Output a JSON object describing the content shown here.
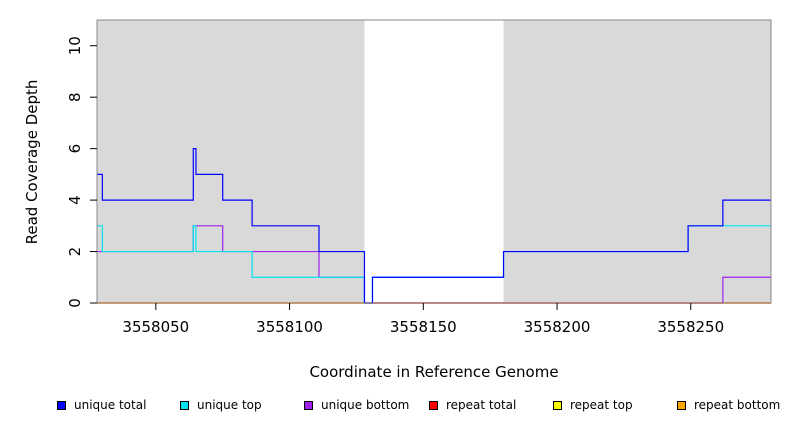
{
  "chart_data": {
    "type": "line",
    "xlabel": "Coordinate in Reference Genome",
    "ylabel": "Read Coverage Depth",
    "xlim": [
      3558028,
      3558280
    ],
    "ylim": [
      0,
      11
    ],
    "x_ticks": [
      3558050,
      3558100,
      3558150,
      3558200,
      3558250
    ],
    "y_ticks": [
      0,
      2,
      4,
      6,
      8,
      10
    ],
    "background_color": "#d9d9d9",
    "highlight_region": [
      3558128,
      3558180
    ],
    "highlight_color": "#ffffff",
    "series": [
      {
        "name": "unique total",
        "color": "#0000ff",
        "x": [
          3558028,
          3558030,
          3558030,
          3558064,
          3558064,
          3558065,
          3558065,
          3558075,
          3558075,
          3558086,
          3558086,
          3558111,
          3558111,
          3558128,
          3558128,
          3558131,
          3558131,
          3558180,
          3558180,
          3558249,
          3558249,
          3558262,
          3558262,
          3558280
        ],
        "y": [
          5,
          5,
          4,
          4,
          6,
          6,
          5,
          5,
          4,
          4,
          3,
          3,
          2,
          2,
          0,
          0,
          1,
          1,
          2,
          2,
          3,
          3,
          4,
          4
        ]
      },
      {
        "name": "unique top",
        "color": "#00e5ee",
        "x": [
          3558028,
          3558030,
          3558030,
          3558064,
          3558064,
          3558065,
          3558065,
          3558086,
          3558086,
          3558111,
          3558111,
          3558128,
          3558128,
          3558131,
          3558131,
          3558180,
          3558180,
          3558249,
          3558249,
          3558280
        ],
        "y": [
          3,
          3,
          2,
          2,
          3,
          3,
          2,
          2,
          1,
          1,
          1,
          1,
          0,
          0,
          1,
          1,
          2,
          2,
          3,
          3
        ]
      },
      {
        "name": "unique bottom",
        "color": "#a020f0",
        "x": [
          3558028,
          3558064,
          3558064,
          3558075,
          3558075,
          3558111,
          3558111,
          3558128,
          3558128,
          3558262,
          3558262,
          3558280
        ],
        "y": [
          2,
          2,
          3,
          3,
          2,
          2,
          1,
          1,
          0,
          0,
          1,
          1
        ]
      },
      {
        "name": "repeat total",
        "color": "#ff0000",
        "x": [
          3558028,
          3558280
        ],
        "y": [
          0,
          0
        ]
      },
      {
        "name": "repeat top",
        "color": "#ffff00",
        "x": [
          3558028,
          3558280
        ],
        "y": [
          0,
          0
        ]
      },
      {
        "name": "repeat bottom",
        "color": "#ffa500",
        "x": [
          3558028,
          3558280
        ],
        "y": [
          0,
          0
        ]
      }
    ],
    "legend_position": "bottom"
  }
}
